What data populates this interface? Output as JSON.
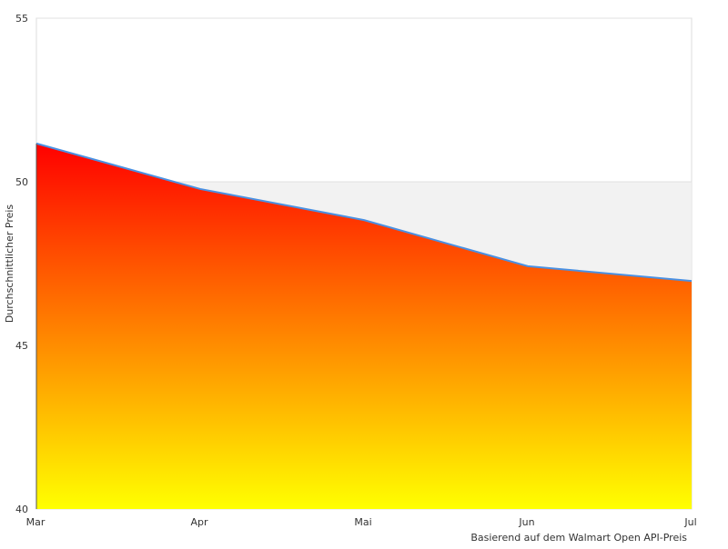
{
  "chart_data": {
    "type": "area",
    "categories": [
      "Mar",
      "Apr",
      "Mai",
      "Jun",
      "Jul"
    ],
    "series": [
      {
        "values": [
          51.17,
          49.78,
          48.83,
          47.42,
          46.97
        ]
      }
    ],
    "title": "",
    "xlabel": "",
    "ylabel": "Durchschnittlicher Preis",
    "ylim": [
      40,
      55
    ],
    "yticks": [
      40,
      45,
      50,
      55
    ],
    "plot_bands": [
      {
        "from": 45,
        "to": 50,
        "color": "#f2f2f2"
      }
    ],
    "credits": "Basierend auf dem Walmart Open API-Preis",
    "grid": true,
    "legend": "none",
    "colors": {
      "line": "#4a90e2",
      "fill_top": "#ff0000",
      "fill_bottom": "#ffff00"
    }
  }
}
